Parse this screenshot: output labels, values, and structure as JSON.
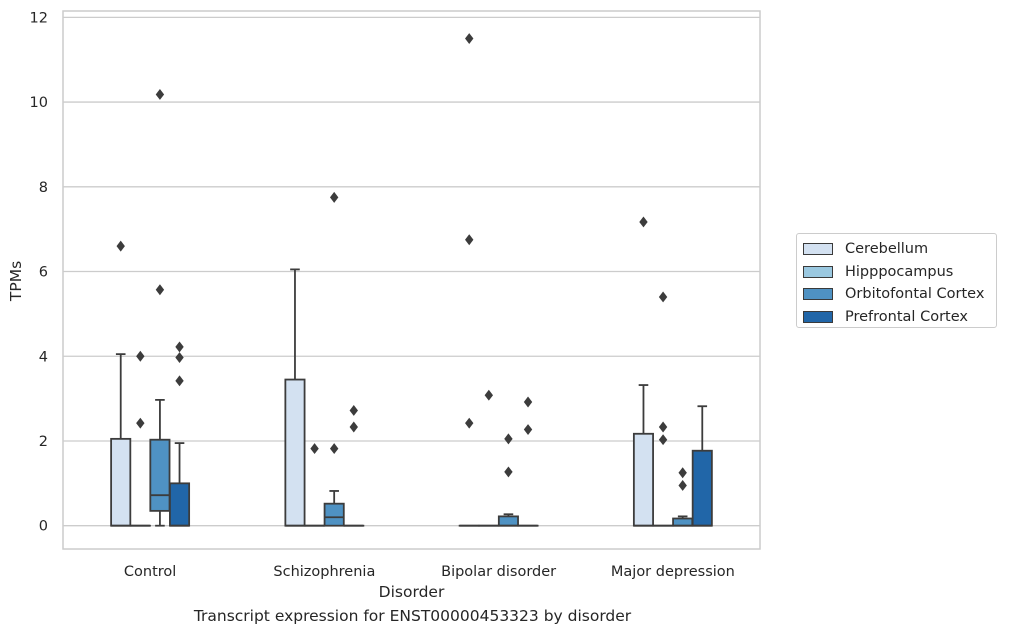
{
  "caption": "Transcript expression for ENST00000453323 by disorder",
  "chart_data": {
    "type": "box",
    "xlabel": "Disorder",
    "ylabel": "TPMs",
    "ylim": [
      -0.55,
      12.15
    ],
    "yticks": [
      0,
      2,
      4,
      6,
      8,
      10,
      12
    ],
    "grid": true,
    "legend_position": "right",
    "categories": [
      "Control",
      "Schizophrenia",
      "Bipolar disorder",
      "Major depression"
    ],
    "series": [
      {
        "name": "Cerebellum",
        "color": "#d3e1f1",
        "boxes": [
          {
            "q1": 0,
            "median": 0,
            "q3": 2.05,
            "whislo": 0,
            "whishi": 4.05,
            "fliers": [
              6.6
            ]
          },
          {
            "q1": 0,
            "median": 0,
            "q3": 3.45,
            "whislo": 0,
            "whishi": 6.05,
            "fliers": []
          },
          {
            "q1": 0,
            "median": 0,
            "q3": 0,
            "whislo": 0,
            "whishi": 0,
            "fliers": [
              11.5,
              6.75,
              2.42
            ]
          },
          {
            "q1": 0,
            "median": 0,
            "q3": 2.17,
            "whislo": 0,
            "whishi": 3.32,
            "fliers": [
              7.17
            ]
          }
        ]
      },
      {
        "name": "Hipppocampus",
        "color": "#9ac8e0",
        "boxes": [
          {
            "q1": 0,
            "median": 0,
            "q3": 0,
            "whislo": 0,
            "whishi": 0,
            "fliers": [
              4.0,
              2.42
            ]
          },
          {
            "q1": 0,
            "median": 0,
            "q3": 0,
            "whislo": 0,
            "whishi": 0,
            "fliers": [
              1.82
            ]
          },
          {
            "q1": 0,
            "median": 0,
            "q3": 0,
            "whislo": 0,
            "whishi": 0,
            "fliers": [
              3.08
            ]
          },
          {
            "q1": 0,
            "median": 0,
            "q3": 0,
            "whislo": 0,
            "whishi": 0,
            "fliers": [
              5.4,
              2.33,
              2.03
            ]
          }
        ]
      },
      {
        "name": "Orbitofontal Cortex",
        "color": "#4f92c3",
        "boxes": [
          {
            "q1": 0.35,
            "median": 0.72,
            "q3": 2.03,
            "whislo": 0,
            "whishi": 2.97,
            "fliers": [
              10.18,
              5.57
            ]
          },
          {
            "q1": 0,
            "median": 0.2,
            "q3": 0.52,
            "whislo": 0,
            "whishi": 0.82,
            "fliers": [
              7.75,
              1.82
            ]
          },
          {
            "q1": 0,
            "median": 0,
            "q3": 0.22,
            "whislo": 0,
            "whishi": 0.27,
            "fliers": [
              2.05,
              1.27
            ]
          },
          {
            "q1": 0,
            "median": 0,
            "q3": 0.17,
            "whislo": 0,
            "whishi": 0.22,
            "fliers": [
              1.25,
              0.95
            ]
          }
        ]
      },
      {
        "name": "Prefrontal Cortex",
        "color": "#2166a8",
        "boxes": [
          {
            "q1": 0,
            "median": 0,
            "q3": 1.0,
            "whislo": 0,
            "whishi": 1.95,
            "fliers": [
              4.22,
              3.97,
              3.42
            ]
          },
          {
            "q1": 0,
            "median": 0,
            "q3": 0,
            "whislo": 0,
            "whishi": 0,
            "fliers": [
              2.72,
              2.33
            ]
          },
          {
            "q1": 0,
            "median": 0,
            "q3": 0,
            "whislo": 0,
            "whishi": 0,
            "fliers": [
              2.92,
              2.27
            ]
          },
          {
            "q1": 0,
            "median": 0,
            "q3": 1.77,
            "whislo": 0,
            "whishi": 2.82,
            "fliers": []
          }
        ]
      }
    ]
  }
}
